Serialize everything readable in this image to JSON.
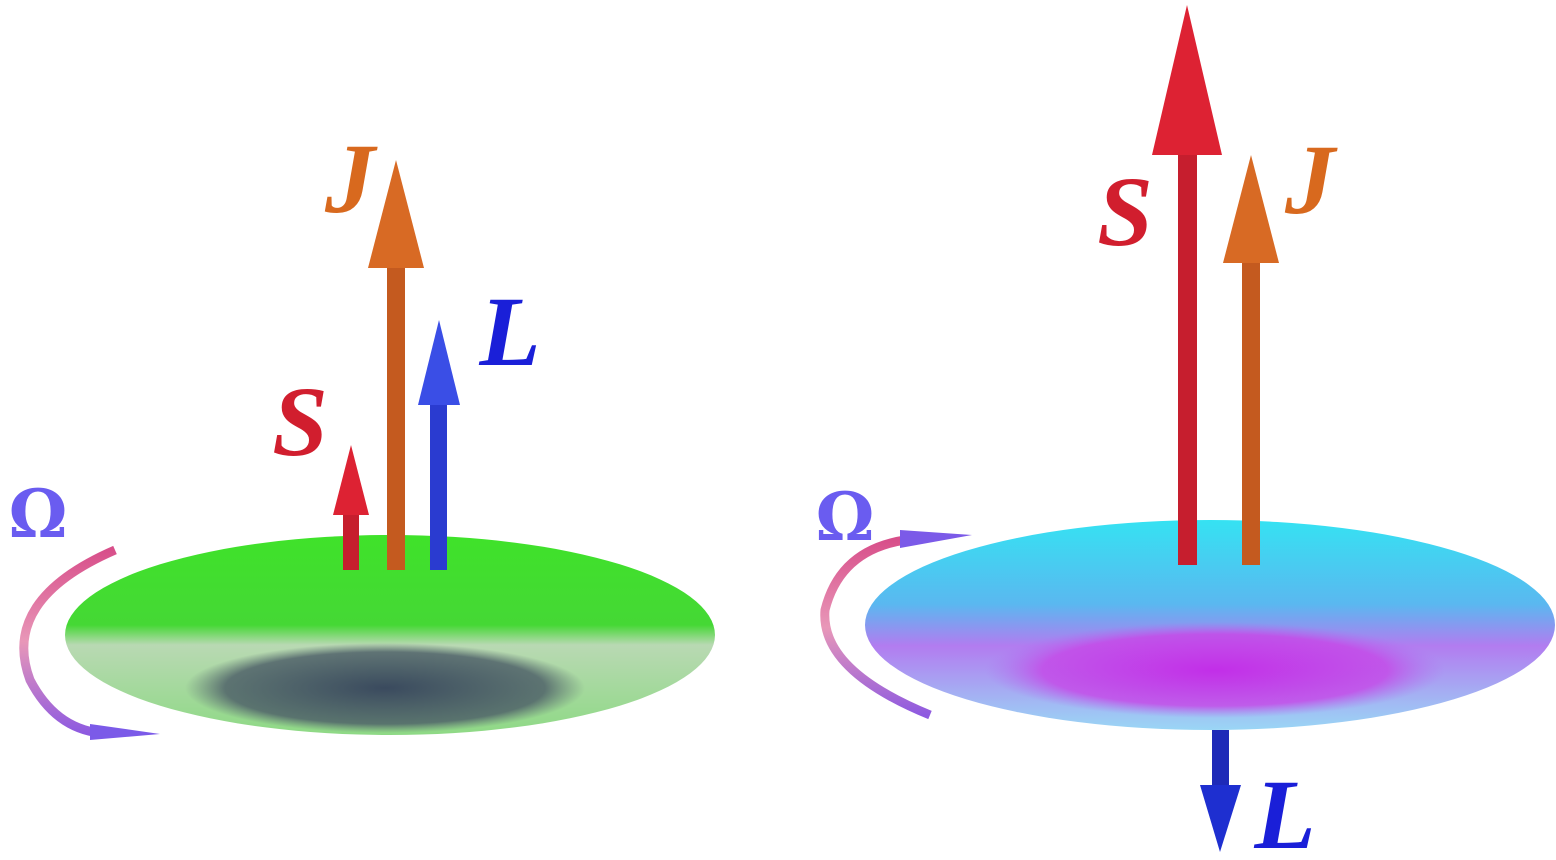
{
  "panels": [
    {
      "labels": {
        "J": "J",
        "L": "L",
        "S": "S",
        "omega": "Ω"
      }
    },
    {
      "labels": {
        "S": "S",
        "J": "J",
        "L": "L",
        "omega": "Ω"
      }
    }
  ]
}
